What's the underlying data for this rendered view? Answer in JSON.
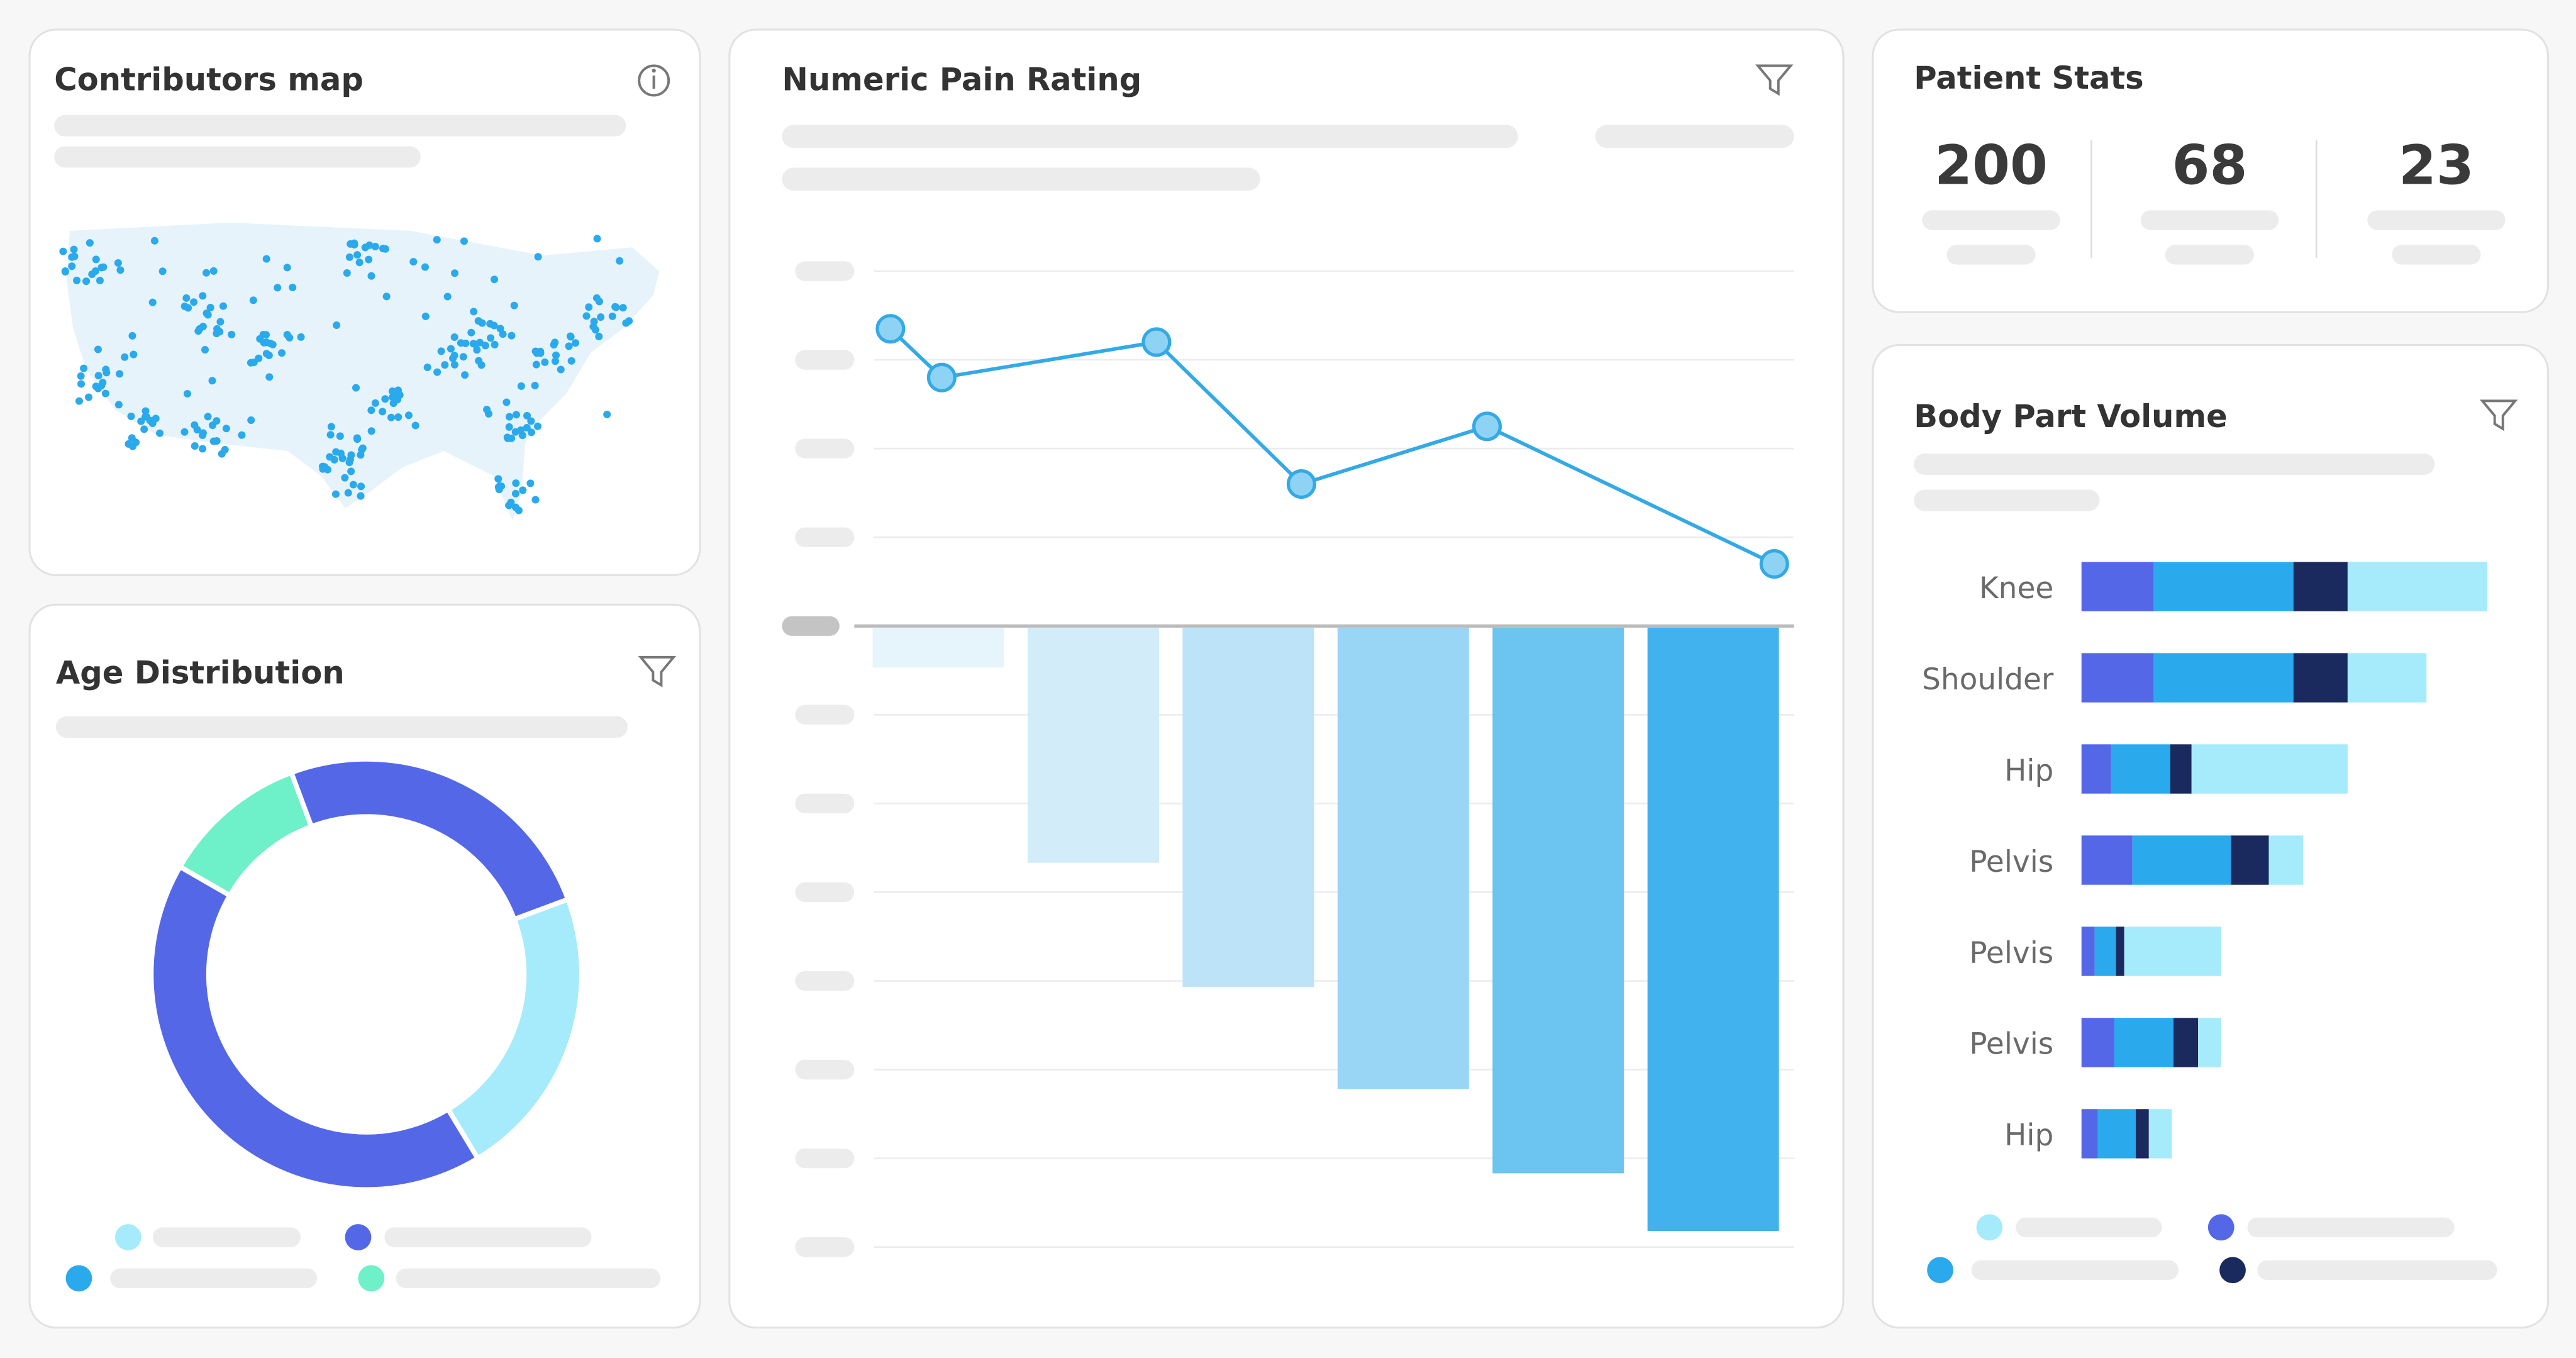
{
  "panels": {
    "map_title": "Contributors map",
    "stats_title": "Patient Stats",
    "stats": [
      200,
      68,
      23
    ]
  },
  "chart_data": [
    {
      "type": "donut",
      "title": "Age Distribution",
      "values": [
        11,
        25,
        22,
        42
      ],
      "colors": [
        "#6ef0c8",
        "#5468e7",
        "#a6ebfc",
        "#5468e7"
      ],
      "start_angle": -60
    },
    {
      "type": "combo",
      "title": "Numeric Pain Rating",
      "ylim": [
        -7,
        4
      ],
      "yticks": [
        -7,
        -6,
        -5,
        -4,
        -3,
        -2,
        -1,
        0,
        1,
        2,
        3,
        4
      ],
      "grid": true,
      "bars": {
        "values": [
          -0.45,
          -2.65,
          -4.05,
          -5.2,
          -6.15,
          -6.8
        ],
        "colors": [
          "#e6f4fc",
          "#d3ecfa",
          "#bde3f8",
          "#99d5f5",
          "#6cc4f1",
          "#41b2ed"
        ]
      },
      "line": {
        "x": [
          0,
          5.8,
          30.1,
          46.5,
          67.5,
          100
        ],
        "xlim": [
          0,
          100
        ],
        "values": [
          3.35,
          2.8,
          3.2,
          1.6,
          2.25,
          0.7
        ],
        "color": "#33a9e6",
        "marker": "#8fd3f4"
      }
    },
    {
      "type": "stacked-bar-h",
      "title": "Body Part Volume",
      "categories": [
        "Knee",
        "Shoulder",
        "Hip",
        "Pelvis",
        "Pelvis",
        "Pelvis",
        "Hip"
      ],
      "xlim": [
        0,
        250
      ],
      "series": [
        {
          "color": "#5468e7",
          "values": [
            44,
            44,
            18,
            31,
            8,
            20,
            10
          ]
        },
        {
          "color": "#2aa9ec",
          "values": [
            85,
            85,
            36,
            60,
            13,
            36,
            23
          ]
        },
        {
          "color": "#1a2a5e",
          "values": [
            33,
            33,
            13,
            23,
            5,
            15,
            8
          ]
        },
        {
          "color": "#a6ebfc",
          "values": [
            85,
            48,
            95,
            21,
            59,
            14,
            14
          ]
        }
      ]
    }
  ]
}
